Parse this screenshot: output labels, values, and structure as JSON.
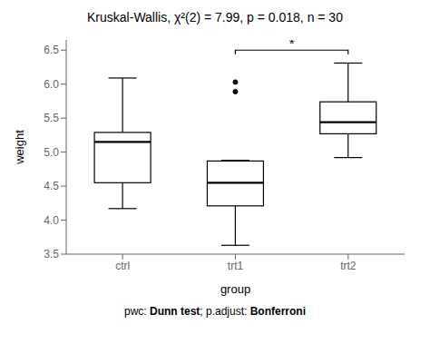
{
  "chart_data": {
    "type": "box",
    "title": "Kruskal-Wallis, χ²(2) = 7.99, p = 0.018, n = 30",
    "xlabel": "group",
    "ylabel": "weight",
    "categories": [
      "ctrl",
      "trt1",
      "trt2"
    ],
    "boxes": [
      {
        "med": 5.15,
        "q1": 4.55,
        "q3": 5.29,
        "whislo": 4.17,
        "whishi": 6.09,
        "fliers": []
      },
      {
        "med": 4.55,
        "q1": 4.21,
        "q3": 4.87,
        "whislo": 3.63,
        "whishi": 4.88,
        "fliers": [
          6.03,
          5.89
        ]
      },
      {
        "med": 5.44,
        "q1": 5.27,
        "q3": 5.74,
        "whislo": 4.92,
        "whishi": 6.31,
        "fliers": []
      }
    ],
    "ylim": [
      3.5,
      6.65
    ],
    "yticks": [
      3.5,
      {
        "value": 4.0,
        "label": "4.0"
      },
      4.5,
      {
        "value": 5.0,
        "label": "5.0"
      },
      5.5,
      {
        "value": 6.0,
        "label": "6.0"
      },
      6.5
    ],
    "color": "#000000",
    "grid": false,
    "annotations": [
      {
        "type": "bracket",
        "x1": "trt1",
        "x2": "trt2",
        "y": 6.5,
        "tip_y": 6.44,
        "label": "*"
      }
    ],
    "footer": [
      "pwc: ",
      "Dunn test",
      "; p.adjust: ",
      "Bonferroni"
    ]
  }
}
